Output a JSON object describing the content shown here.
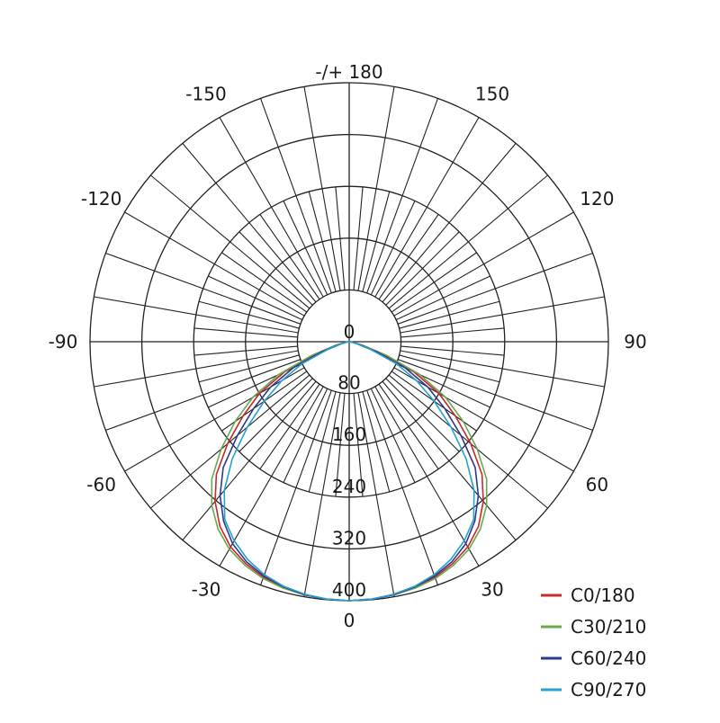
{
  "chart_data": {
    "type": "polar-line",
    "grid": true,
    "radial_axis": {
      "min": 0,
      "max": 400,
      "ticks": [
        "0",
        "80",
        "160",
        "240",
        "320",
        "400"
      ]
    },
    "angle_ticks": [
      {
        "angle": 0,
        "label": "0"
      },
      {
        "angle": 30,
        "label": "30"
      },
      {
        "angle": 60,
        "label": "60"
      },
      {
        "angle": 90,
        "label": "90"
      },
      {
        "angle": 120,
        "label": "120"
      },
      {
        "angle": 150,
        "label": "150"
      },
      {
        "angle": 180,
        "label": "-/+ 180"
      },
      {
        "angle": -150,
        "label": "-150"
      },
      {
        "angle": -120,
        "label": "-120"
      },
      {
        "angle": -90,
        "label": "-90"
      },
      {
        "angle": -60,
        "label": "-60"
      },
      {
        "angle": -30,
        "label": "-30"
      }
    ],
    "gamma": [
      0,
      5,
      10,
      15,
      20,
      25,
      30,
      35,
      40,
      45,
      50,
      55,
      60,
      65,
      70,
      75,
      80,
      85,
      90
    ],
    "legend_position": "bottom-right",
    "series": [
      {
        "name": "C0/180",
        "color": "#c8282a",
        "values": [
          400,
          399,
          397,
          393,
          387,
          378,
          366,
          348,
          322,
          290,
          245,
          200,
          160,
          110,
          55,
          20,
          5,
          1,
          0
        ]
      },
      {
        "name": "C30/210",
        "color": "#6aa84f",
        "values": [
          400,
          399,
          397,
          394,
          389,
          381,
          370,
          353,
          330,
          300,
          258,
          215,
          172,
          120,
          62,
          22,
          6,
          1,
          0
        ]
      },
      {
        "name": "C60/240",
        "color": "#2e3a8c",
        "values": [
          400,
          399,
          397,
          392,
          385,
          375,
          360,
          338,
          310,
          275,
          225,
          180,
          140,
          95,
          45,
          16,
          4,
          1,
          0
        ]
      },
      {
        "name": "C90/270",
        "color": "#2aa0d0",
        "values": [
          400,
          399,
          396,
          391,
          383,
          371,
          355,
          335,
          300,
          255,
          205,
          160,
          120,
          80,
          35,
          12,
          3,
          1,
          0
        ]
      }
    ]
  }
}
